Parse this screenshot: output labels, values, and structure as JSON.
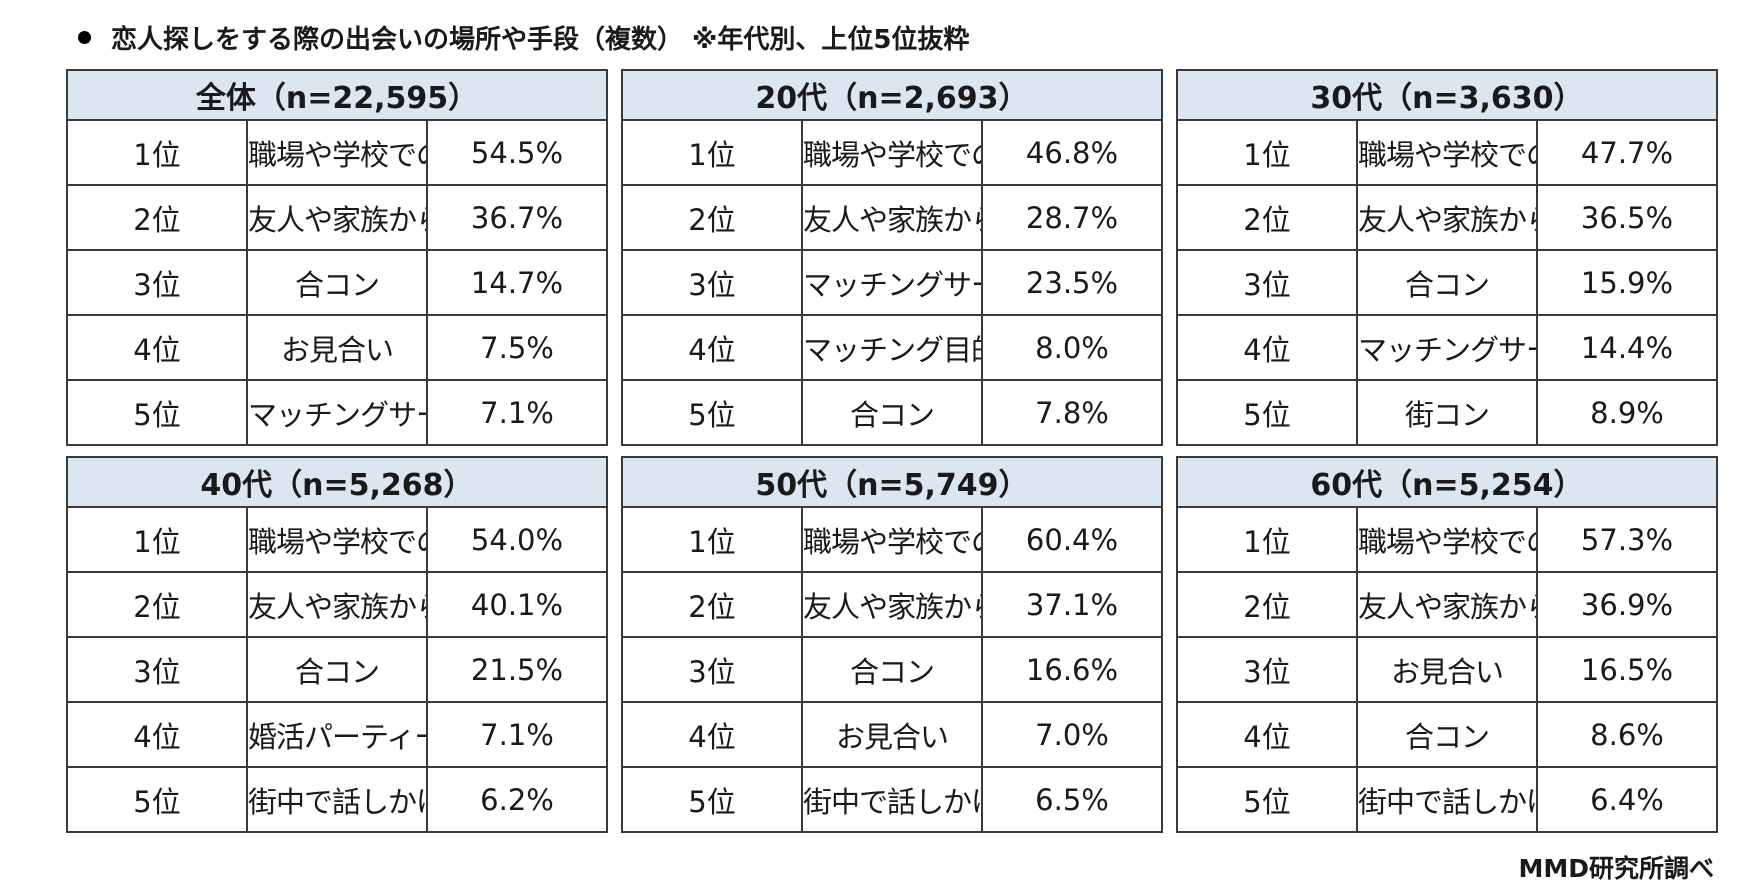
{
  "title": "恋人探しをする際の出会いの場所や手段（複数） ※年代別、上位5位抜粋",
  "source": "MMD研究所調べ",
  "header_color": "#dce6f1",
  "chart_data": [
    {
      "type": "table",
      "title": "全体（n=22,595）",
      "columns": [
        "rank",
        "item",
        "percent"
      ],
      "rows": [
        {
          "rank": "1位",
          "item": "職場や学校での出会い",
          "percent": "54.5%",
          "value": 54.5
        },
        {
          "rank": "2位",
          "item": "友人や家族からの紹介",
          "percent": "36.7%",
          "value": 36.7
        },
        {
          "rank": "3位",
          "item": "合コン",
          "percent": "14.7%",
          "value": 14.7
        },
        {
          "rank": "4位",
          "item": "お見合い",
          "percent": "7.5%",
          "value": 7.5
        },
        {
          "rank": "5位",
          "item": "マッチングサービス・アプリ",
          "percent": "7.1%",
          "value": 7.1
        }
      ]
    },
    {
      "type": "table",
      "title": "20代（n=2,693）",
      "columns": [
        "rank",
        "item",
        "percent"
      ],
      "rows": [
        {
          "rank": "1位",
          "item": "職場や学校での出会い",
          "percent": "46.8%",
          "value": 46.8
        },
        {
          "rank": "2位",
          "item": "友人や家族からの紹介",
          "percent": "28.7%",
          "value": 28.7
        },
        {
          "rank": "3位",
          "item": "マッチングサービス・アプリ",
          "percent": "23.5%",
          "value": 23.5
        },
        {
          "rank": "4位",
          "item": "マッチング目的のイベント",
          "percent": "8.0%",
          "value": 8.0
        },
        {
          "rank": "5位",
          "item": "合コン",
          "percent": "7.8%",
          "value": 7.8
        }
      ]
    },
    {
      "type": "table",
      "title": "30代（n=3,630）",
      "columns": [
        "rank",
        "item",
        "percent"
      ],
      "rows": [
        {
          "rank": "1位",
          "item": "職場や学校での出会い",
          "percent": "47.7%",
          "value": 47.7
        },
        {
          "rank": "2位",
          "item": "友人や家族からの紹介",
          "percent": "36.5%",
          "value": 36.5
        },
        {
          "rank": "3位",
          "item": "合コン",
          "percent": "15.9%",
          "value": 15.9
        },
        {
          "rank": "4位",
          "item": "マッチングサービス・アプリ",
          "percent": "14.4%",
          "value": 14.4
        },
        {
          "rank": "5位",
          "item": "街コン",
          "percent": "8.9%",
          "value": 8.9
        }
      ]
    },
    {
      "type": "table",
      "title": "40代（n=5,268）",
      "columns": [
        "rank",
        "item",
        "percent"
      ],
      "rows": [
        {
          "rank": "1位",
          "item": "職場や学校での出会い",
          "percent": "54.0%",
          "value": 54.0
        },
        {
          "rank": "2位",
          "item": "友人や家族からの紹介",
          "percent": "40.1%",
          "value": 40.1
        },
        {
          "rank": "3位",
          "item": "合コン",
          "percent": "21.5%",
          "value": 21.5
        },
        {
          "rank": "4位",
          "item": "婚活パーティー",
          "percent": "7.1%",
          "value": 7.1
        },
        {
          "rank": "5位",
          "item": "街中で話しかける",
          "percent": "6.2%",
          "value": 6.2
        }
      ]
    },
    {
      "type": "table",
      "title": "50代（n=5,749）",
      "columns": [
        "rank",
        "item",
        "percent"
      ],
      "rows": [
        {
          "rank": "1位",
          "item": "職場や学校での出会い",
          "percent": "60.4%",
          "value": 60.4
        },
        {
          "rank": "2位",
          "item": "友人や家族からの紹介",
          "percent": "37.1%",
          "value": 37.1
        },
        {
          "rank": "3位",
          "item": "合コン",
          "percent": "16.6%",
          "value": 16.6
        },
        {
          "rank": "4位",
          "item": "お見合い",
          "percent": "7.0%",
          "value": 7.0
        },
        {
          "rank": "5位",
          "item": "街中で話しかける",
          "percent": "6.5%",
          "value": 6.5
        }
      ]
    },
    {
      "type": "table",
      "title": "60代（n=5,254）",
      "columns": [
        "rank",
        "item",
        "percent"
      ],
      "rows": [
        {
          "rank": "1位",
          "item": "職場や学校での出会い",
          "percent": "57.3%",
          "value": 57.3
        },
        {
          "rank": "2位",
          "item": "友人や家族からの紹介",
          "percent": "36.9%",
          "value": 36.9
        },
        {
          "rank": "3位",
          "item": "お見合い",
          "percent": "16.5%",
          "value": 16.5
        },
        {
          "rank": "4位",
          "item": "合コン",
          "percent": "8.6%",
          "value": 8.6
        },
        {
          "rank": "5位",
          "item": "街中で話しかける",
          "percent": "6.4%",
          "value": 6.4
        }
      ]
    }
  ]
}
